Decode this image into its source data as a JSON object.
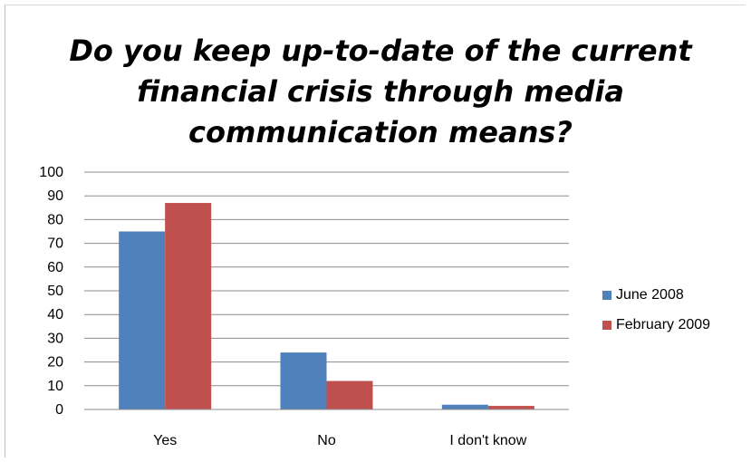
{
  "chart_data": {
    "type": "bar",
    "title": "Do you keep up-to-date of the current\nfinancial crisis through media\ncommunication means?",
    "categories": [
      "Yes",
      "No",
      "I don't know"
    ],
    "series": [
      {
        "name": "June 2008",
        "color": "#4F81BD",
        "values": [
          75,
          24,
          2
        ]
      },
      {
        "name": "February 2009",
        "color": "#C0504D",
        "values": [
          87,
          12,
          1.5
        ]
      }
    ],
    "ylim": [
      0,
      100
    ],
    "yticks": [
      0,
      10,
      20,
      30,
      40,
      50,
      60,
      70,
      80,
      90,
      100
    ],
    "grid": true,
    "legend_position": "right"
  }
}
